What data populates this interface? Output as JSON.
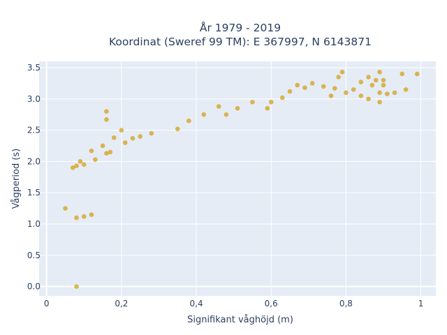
{
  "chart_data": {
    "type": "scatter",
    "title_line1": "År 1979 - 2019",
    "title_line2": "Koordinat (Sweref 99 TM): E 367997, N 6143871",
    "xlabel": "Signifikant våghöjd (m)",
    "ylabel": "Vågperiod (s)",
    "xlim": [
      -0.02,
      1.04
    ],
    "ylim": [
      -0.15,
      3.6
    ],
    "x_ticks": [
      0,
      0.2,
      0.4,
      0.6,
      0.8,
      1
    ],
    "x_tick_labels": [
      "0",
      "0,2",
      "0,4",
      "0,6",
      "0,8",
      "1"
    ],
    "y_ticks": [
      0,
      0.5,
      1,
      1.5,
      2,
      2.5,
      3,
      3.5
    ],
    "y_tick_labels": [
      "0.0",
      "0.5",
      "1.0",
      "1.5",
      "2.0",
      "2.5",
      "3.0",
      "3.5"
    ],
    "grid": true,
    "marker_color": "#d4a017",
    "background_color": "#e5ecf6",
    "series": [
      {
        "points": [
          [
            0.08,
            0.0
          ],
          [
            0.07,
            1.9
          ],
          [
            0.08,
            1.93
          ],
          [
            0.09,
            2.0
          ],
          [
            0.1,
            1.95
          ],
          [
            0.12,
            2.17
          ],
          [
            0.13,
            2.03
          ],
          [
            0.15,
            2.25
          ],
          [
            0.16,
            2.8
          ],
          [
            0.16,
            2.67
          ],
          [
            0.16,
            2.13
          ],
          [
            0.17,
            2.15
          ],
          [
            0.18,
            2.38
          ],
          [
            0.2,
            2.5
          ],
          [
            0.21,
            2.3
          ],
          [
            0.23,
            2.37
          ],
          [
            0.08,
            1.1
          ],
          [
            0.1,
            1.12
          ],
          [
            0.12,
            1.15
          ],
          [
            0.05,
            1.25
          ],
          [
            0.79,
            3.43
          ],
          [
            0.78,
            3.35
          ],
          [
            0.84,
            3.27
          ],
          [
            0.86,
            3.35
          ],
          [
            0.87,
            3.22
          ],
          [
            0.88,
            3.3
          ],
          [
            0.89,
            3.43
          ],
          [
            0.9,
            3.22
          ],
          [
            0.9,
            3.3
          ],
          [
            0.89,
            3.1
          ],
          [
            0.89,
            2.95
          ],
          [
            0.86,
            3.0
          ],
          [
            0.84,
            3.05
          ],
          [
            0.82,
            3.15
          ],
          [
            0.8,
            3.1
          ],
          [
            0.77,
            3.17
          ],
          [
            0.76,
            3.05
          ],
          [
            0.74,
            3.2
          ],
          [
            0.71,
            3.25
          ],
          [
            0.69,
            3.18
          ],
          [
            0.67,
            3.22
          ],
          [
            0.65,
            3.12
          ],
          [
            0.93,
            3.1
          ],
          [
            0.95,
            3.4
          ],
          [
            0.99,
            3.4
          ],
          [
            0.96,
            3.15
          ],
          [
            0.91,
            3.08
          ],
          [
            0.6,
            2.95
          ],
          [
            0.63,
            3.02
          ],
          [
            0.59,
            2.85
          ],
          [
            0.46,
            2.88
          ],
          [
            0.48,
            2.75
          ],
          [
            0.51,
            2.85
          ],
          [
            0.55,
            2.95
          ],
          [
            0.42,
            2.75
          ],
          [
            0.38,
            2.65
          ],
          [
            0.35,
            2.52
          ],
          [
            0.28,
            2.45
          ],
          [
            0.25,
            2.4
          ]
        ]
      }
    ]
  }
}
